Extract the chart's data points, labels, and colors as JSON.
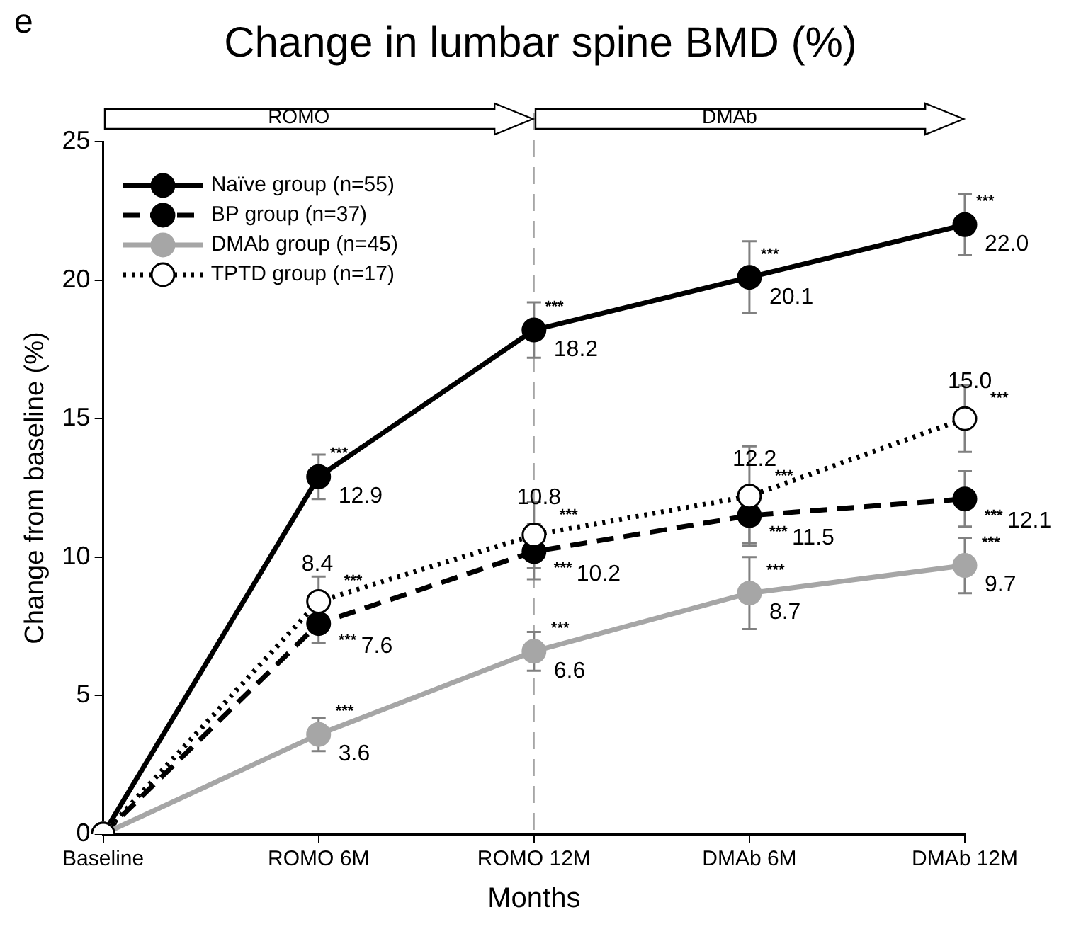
{
  "chart_data": {
    "type": "line",
    "title": "Change in lumbar spine BMD (%)",
    "xlabel": "Months",
    "ylabel": "Change from baseline (%)",
    "categories": [
      "Baseline",
      "ROMO 6M",
      "ROMO 12M",
      "DMAb 6M",
      "DMAb 12M"
    ],
    "ylim": [
      0,
      25
    ],
    "yticks": [
      0,
      5,
      10,
      15,
      20,
      25
    ],
    "grid": false,
    "legend": "top left",
    "marker": "circle",
    "series": [
      {
        "name": "Naïve group (n=55)",
        "color": "#000000",
        "line_style": "solid",
        "values": [
          0,
          12.9,
          18.2,
          20.1,
          22.0
        ],
        "errors": [
          null,
          0.8,
          1.0,
          1.3,
          1.1
        ],
        "value_labels": [
          null,
          "12.9",
          "18.2",
          "20.1",
          "22.0"
        ]
      },
      {
        "name": "BP group (n=37)",
        "color": "#000000",
        "line_style": "dashed",
        "values": [
          0,
          7.6,
          10.2,
          11.5,
          12.1
        ],
        "errors": [
          null,
          0.7,
          1.0,
          1.0,
          1.0
        ],
        "value_labels": [
          null,
          "7.6",
          "10.2",
          "11.5",
          "12.1"
        ]
      },
      {
        "name": "DMAb group (n=45)",
        "color": "#a6a6a6",
        "line_style": "solid",
        "values": [
          0,
          3.6,
          6.6,
          8.7,
          9.7
        ],
        "errors": [
          null,
          0.6,
          0.7,
          1.3,
          1.0
        ],
        "value_labels": [
          null,
          "3.6",
          "6.6",
          "8.7",
          "9.7"
        ]
      },
      {
        "name": "TPTD group (n=17)",
        "color": "#000000",
        "line_style": "dotted",
        "colors": [
          "#ffffff",
          "#ffffff",
          "#ffffff",
          "#ffffff",
          "#ffffff"
        ],
        "values": [
          0,
          8.4,
          10.8,
          12.2,
          15.0
        ],
        "errors": [
          null,
          0.9,
          1.2,
          1.8,
          1.2
        ],
        "value_labels": [
          null,
          "8.4",
          "10.8",
          "12.2",
          "15.0"
        ]
      }
    ],
    "ref_lines": [
      {
        "axis": "x",
        "value": "ROMO 12M",
        "color": "#a6a6a6",
        "line_style": "dashed"
      }
    ],
    "annotations": [
      "e",
      "ROMO",
      "DMAb",
      {
        "text": "***",
        "x": "ROMO 6M",
        "y": 12.9
      },
      {
        "text": "***",
        "x": "ROMO 12M",
        "y": 18.2
      },
      {
        "text": "***",
        "x": "DMAb 6M",
        "y": 20.1
      },
      {
        "text": "***",
        "x": "DMAb 12M",
        "y": 22.0
      },
      {
        "text": "***",
        "x": "ROMO 6M",
        "y": 7.6
      },
      {
        "text": "***",
        "x": "ROMO 12M",
        "y": 10.2
      },
      {
        "text": "***",
        "x": "DMAb 6M",
        "y": 11.5
      },
      {
        "text": "***",
        "x": "DMAb 12M",
        "y": 12.1
      },
      {
        "text": "***",
        "x": "ROMO 6M",
        "y": 3.6
      },
      {
        "text": "***",
        "x": "ROMO 12M",
        "y": 6.6
      },
      {
        "text": "***",
        "x": "DMAb 6M",
        "y": 8.7
      },
      {
        "text": "***",
        "x": "DMAb 12M",
        "y": 9.7
      },
      {
        "text": "***",
        "x": "ROMO 6M",
        "y": 8.4
      },
      {
        "text": "***",
        "x": "ROMO 12M",
        "y": 10.8
      },
      {
        "text": "***",
        "x": "DMAb 6M",
        "y": 12.2
      },
      {
        "text": "***",
        "x": "DMAb 12M",
        "y": 15.0
      }
    ]
  }
}
